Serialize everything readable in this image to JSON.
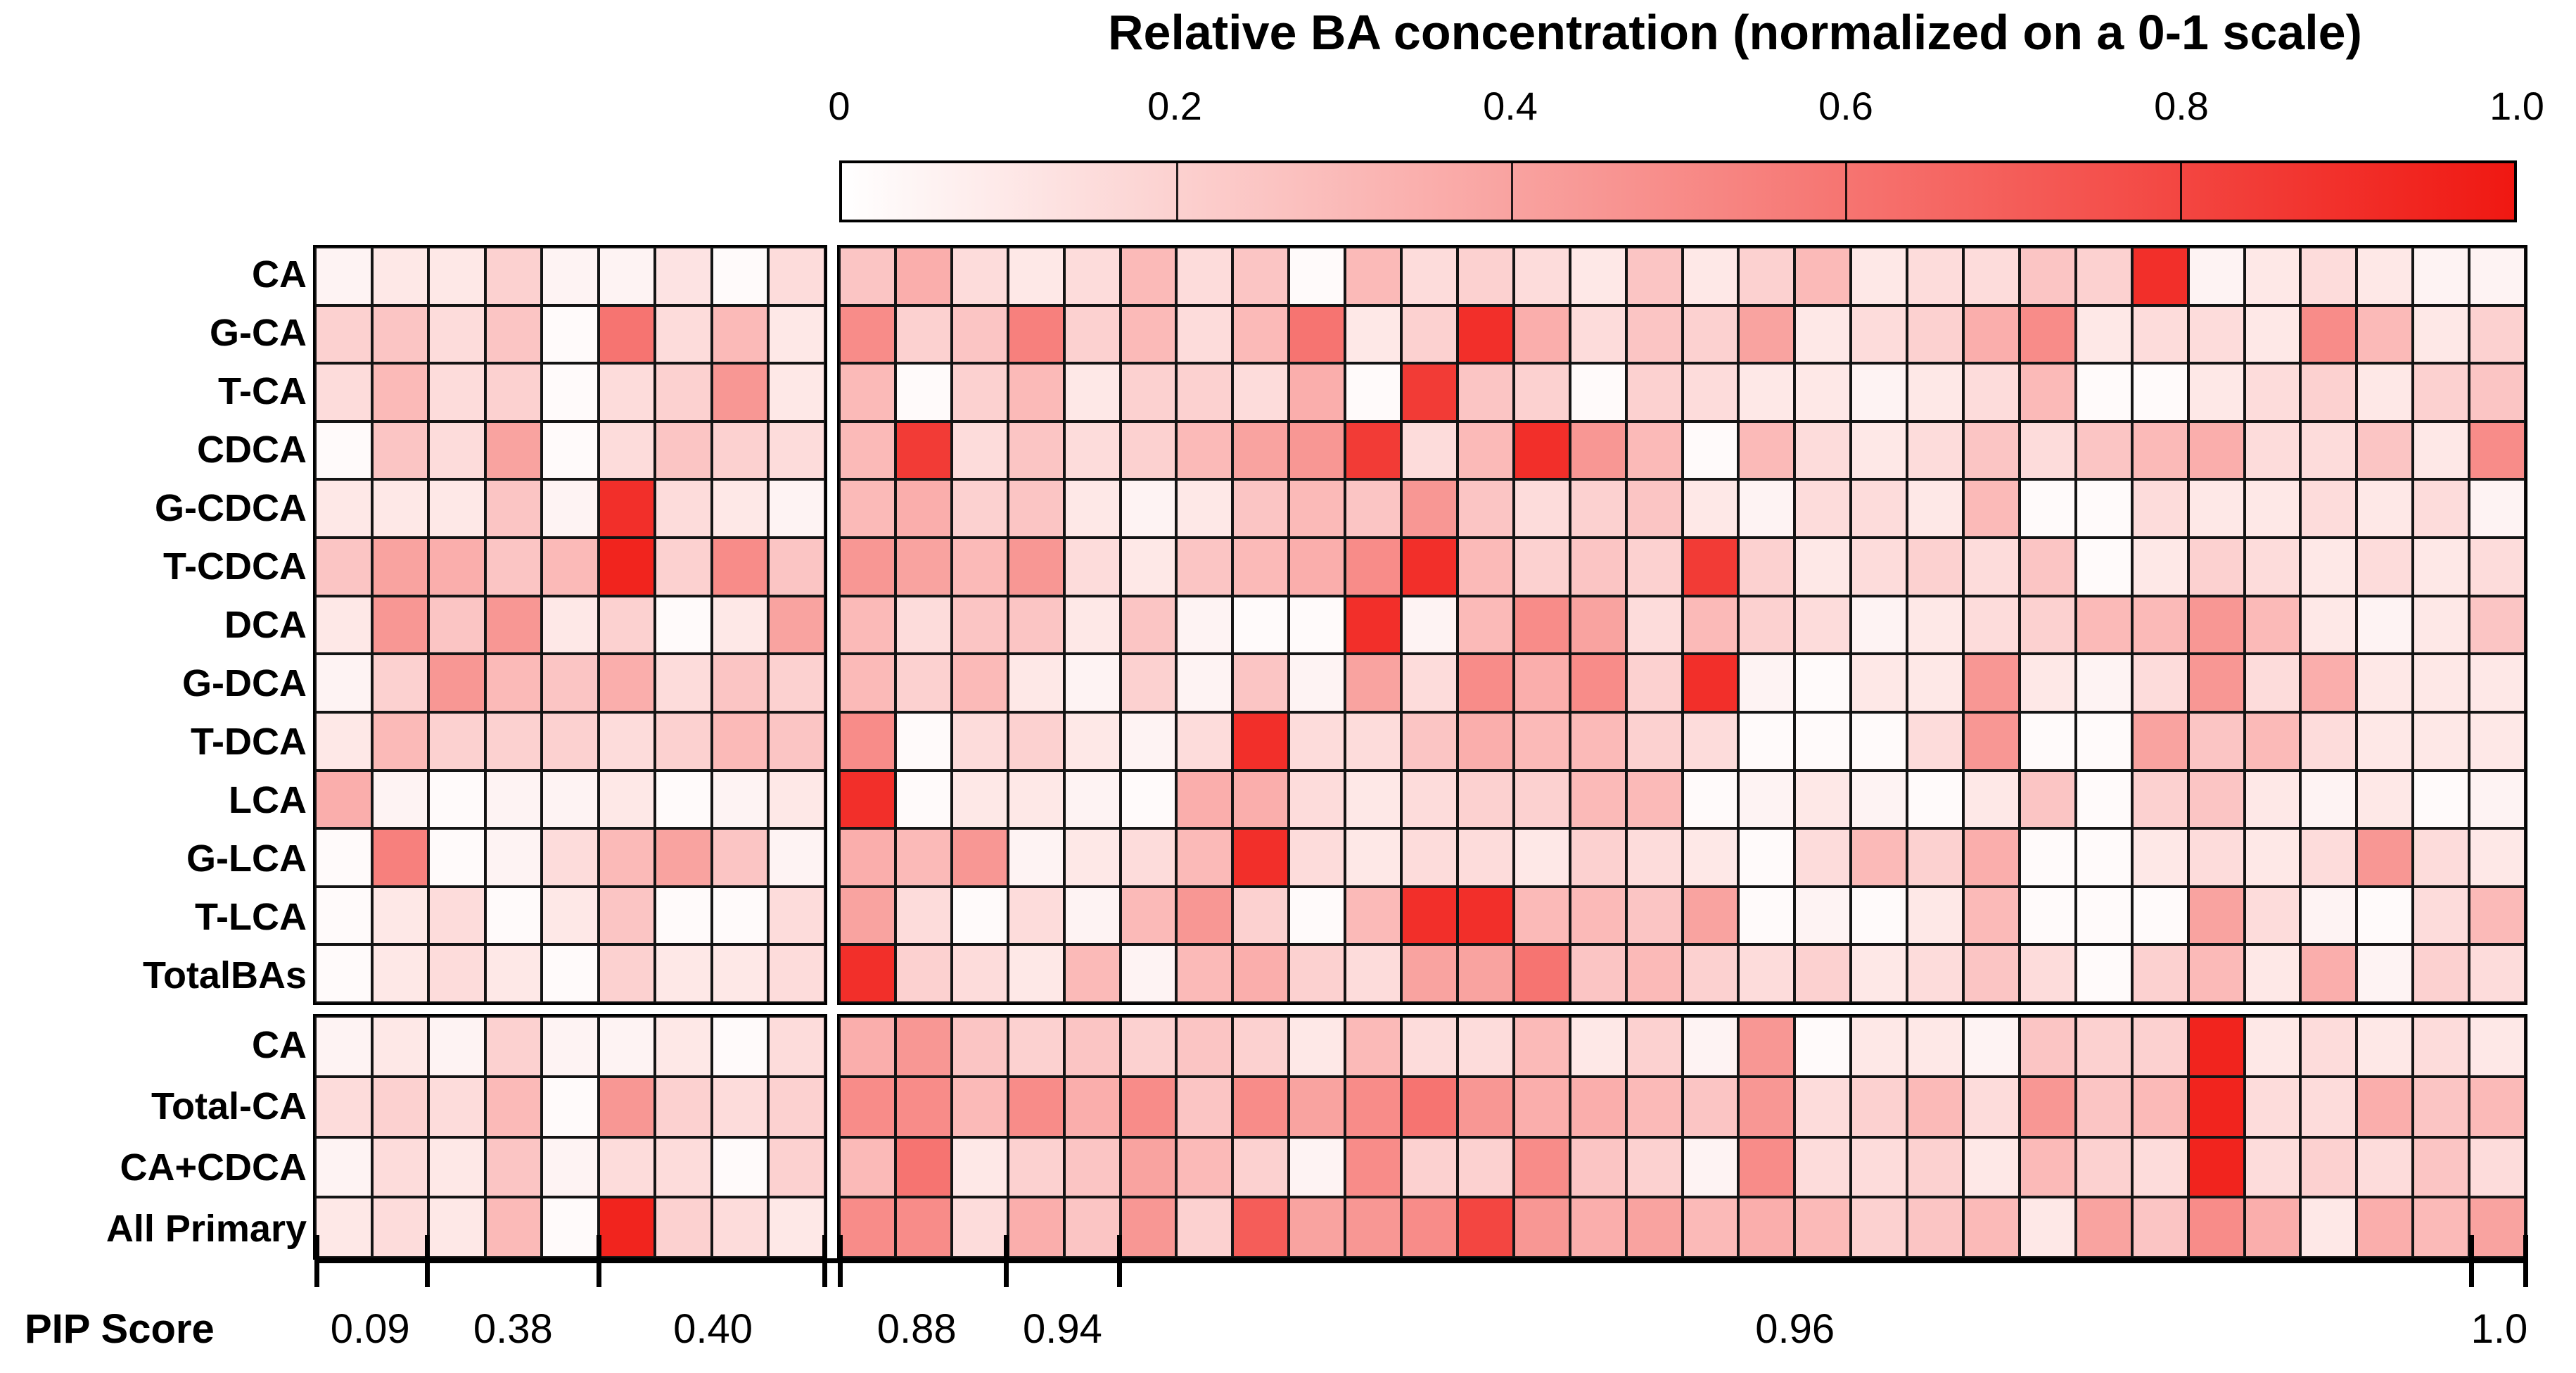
{
  "chart_data": {
    "type": "heatmap",
    "title": "Relative BA concentration (normalized on a 0-1 scale)",
    "colorbar": {
      "tick_labels": [
        "0",
        "0.2",
        "0.4",
        "0.6",
        "0.8",
        "1.0"
      ],
      "min_color": "#ffffff",
      "max_color": "#f01812",
      "range": [
        0,
        1
      ]
    },
    "columns_total": 39,
    "column_group_split": 9,
    "top_rows": [
      {
        "label": "CA",
        "values": [
          0.05,
          0.1,
          0.1,
          0.2,
          0.05,
          0.05,
          0.12,
          0.02,
          0.15,
          0.25,
          0.35,
          0.15,
          0.1,
          0.15,
          0.3,
          0.15,
          0.25,
          0.02,
          0.3,
          0.15,
          0.2,
          0.15,
          0.1,
          0.25,
          0.1,
          0.2,
          0.3,
          0.1,
          0.15,
          0.15,
          0.25,
          0.2,
          0.9,
          0.05,
          0.1,
          0.15,
          0.1,
          0.05,
          0.05
        ]
      },
      {
        "label": "G-CA",
        "values": [
          0.2,
          0.25,
          0.15,
          0.25,
          0.02,
          0.6,
          0.15,
          0.3,
          0.1,
          0.5,
          0.2,
          0.25,
          0.55,
          0.2,
          0.3,
          0.15,
          0.3,
          0.6,
          0.1,
          0.2,
          0.9,
          0.35,
          0.15,
          0.25,
          0.2,
          0.4,
          0.1,
          0.15,
          0.2,
          0.35,
          0.5,
          0.1,
          0.15,
          0.15,
          0.1,
          0.5,
          0.3,
          0.1,
          0.2
        ]
      },
      {
        "label": "T-CA",
        "values": [
          0.15,
          0.3,
          0.15,
          0.2,
          0.02,
          0.15,
          0.2,
          0.45,
          0.1,
          0.3,
          0.02,
          0.2,
          0.3,
          0.1,
          0.2,
          0.2,
          0.15,
          0.35,
          0.02,
          0.85,
          0.25,
          0.2,
          0.02,
          0.2,
          0.15,
          0.1,
          0.1,
          0.05,
          0.1,
          0.15,
          0.3,
          0.02,
          0.02,
          0.1,
          0.15,
          0.2,
          0.1,
          0.2,
          0.25
        ]
      },
      {
        "label": "CDCA",
        "values": [
          0.02,
          0.25,
          0.15,
          0.4,
          0.02,
          0.15,
          0.25,
          0.2,
          0.15,
          0.3,
          0.85,
          0.15,
          0.25,
          0.15,
          0.2,
          0.3,
          0.4,
          0.45,
          0.85,
          0.15,
          0.3,
          0.9,
          0.45,
          0.3,
          0.02,
          0.3,
          0.15,
          0.1,
          0.15,
          0.25,
          0.15,
          0.25,
          0.3,
          0.35,
          0.15,
          0.15,
          0.25,
          0.1,
          0.5
        ]
      },
      {
        "label": "G-CDCA",
        "values": [
          0.1,
          0.1,
          0.1,
          0.25,
          0.05,
          0.9,
          0.15,
          0.1,
          0.05,
          0.3,
          0.35,
          0.2,
          0.25,
          0.1,
          0.05,
          0.1,
          0.25,
          0.3,
          0.25,
          0.45,
          0.25,
          0.15,
          0.2,
          0.25,
          0.1,
          0.05,
          0.15,
          0.15,
          0.1,
          0.3,
          0.02,
          0.02,
          0.15,
          0.1,
          0.1,
          0.15,
          0.1,
          0.15,
          0.05
        ]
      },
      {
        "label": "T-CDCA",
        "values": [
          0.25,
          0.4,
          0.35,
          0.25,
          0.3,
          0.95,
          0.2,
          0.5,
          0.25,
          0.45,
          0.4,
          0.3,
          0.45,
          0.15,
          0.1,
          0.25,
          0.3,
          0.35,
          0.5,
          0.9,
          0.3,
          0.2,
          0.25,
          0.2,
          0.85,
          0.2,
          0.1,
          0.15,
          0.2,
          0.15,
          0.25,
          0.02,
          0.1,
          0.2,
          0.15,
          0.1,
          0.15,
          0.1,
          0.15
        ]
      },
      {
        "label": "DCA",
        "values": [
          0.1,
          0.45,
          0.25,
          0.45,
          0.1,
          0.2,
          0.02,
          0.1,
          0.4,
          0.3,
          0.15,
          0.25,
          0.25,
          0.1,
          0.25,
          0.05,
          0.02,
          0.02,
          0.9,
          0.05,
          0.3,
          0.5,
          0.4,
          0.15,
          0.3,
          0.2,
          0.15,
          0.05,
          0.1,
          0.15,
          0.2,
          0.3,
          0.3,
          0.45,
          0.3,
          0.1,
          0.05,
          0.1,
          0.25
        ]
      },
      {
        "label": "G-DCA",
        "values": [
          0.05,
          0.2,
          0.45,
          0.3,
          0.25,
          0.35,
          0.15,
          0.25,
          0.2,
          0.3,
          0.2,
          0.3,
          0.1,
          0.05,
          0.2,
          0.05,
          0.25,
          0.05,
          0.4,
          0.15,
          0.5,
          0.35,
          0.5,
          0.2,
          0.9,
          0.05,
          0.02,
          0.1,
          0.1,
          0.45,
          0.1,
          0.05,
          0.15,
          0.45,
          0.15,
          0.35,
          0.1,
          0.1,
          0.1
        ]
      },
      {
        "label": "T-DCA",
        "values": [
          0.1,
          0.3,
          0.2,
          0.2,
          0.2,
          0.15,
          0.2,
          0.3,
          0.25,
          0.5,
          0.02,
          0.15,
          0.2,
          0.1,
          0.05,
          0.15,
          0.9,
          0.15,
          0.15,
          0.25,
          0.35,
          0.3,
          0.3,
          0.2,
          0.15,
          0.02,
          0.02,
          0.02,
          0.15,
          0.45,
          0.02,
          0.02,
          0.4,
          0.25,
          0.3,
          0.15,
          0.1,
          0.1,
          0.1
        ]
      },
      {
        "label": "LCA",
        "values": [
          0.35,
          0.05,
          0.02,
          0.05,
          0.05,
          0.1,
          0.02,
          0.05,
          0.1,
          0.9,
          0.02,
          0.1,
          0.1,
          0.05,
          0.02,
          0.35,
          0.35,
          0.15,
          0.1,
          0.15,
          0.2,
          0.2,
          0.3,
          0.3,
          0.02,
          0.05,
          0.1,
          0.05,
          0.02,
          0.1,
          0.25,
          0.02,
          0.2,
          0.25,
          0.1,
          0.05,
          0.1,
          0.02,
          0.05
        ]
      },
      {
        "label": "G-LCA",
        "values": [
          0.02,
          0.55,
          0.02,
          0.05,
          0.15,
          0.3,
          0.4,
          0.25,
          0.05,
          0.35,
          0.3,
          0.45,
          0.05,
          0.1,
          0.15,
          0.3,
          0.9,
          0.15,
          0.1,
          0.15,
          0.15,
          0.1,
          0.2,
          0.15,
          0.1,
          0.02,
          0.15,
          0.3,
          0.2,
          0.35,
          0.02,
          0.02,
          0.1,
          0.15,
          0.1,
          0.15,
          0.45,
          0.15,
          0.1
        ]
      },
      {
        "label": "T-LCA",
        "values": [
          0.02,
          0.1,
          0.15,
          0.02,
          0.1,
          0.25,
          0.02,
          0.02,
          0.15,
          0.4,
          0.15,
          0.02,
          0.15,
          0.05,
          0.3,
          0.45,
          0.2,
          0.02,
          0.3,
          0.9,
          0.9,
          0.3,
          0.3,
          0.25,
          0.4,
          0.02,
          0.05,
          0.02,
          0.1,
          0.3,
          0.02,
          0.02,
          0.02,
          0.4,
          0.15,
          0.05,
          0.02,
          0.15,
          0.3
        ]
      },
      {
        "label": "TotalBAs",
        "values": [
          0.02,
          0.1,
          0.15,
          0.1,
          0.02,
          0.2,
          0.1,
          0.1,
          0.15,
          0.9,
          0.2,
          0.15,
          0.1,
          0.3,
          0.05,
          0.3,
          0.35,
          0.2,
          0.15,
          0.4,
          0.4,
          0.6,
          0.25,
          0.3,
          0.2,
          0.15,
          0.2,
          0.1,
          0.15,
          0.25,
          0.15,
          0.02,
          0.2,
          0.3,
          0.1,
          0.35,
          0.05,
          0.2,
          0.15
        ]
      }
    ],
    "bottom_rows": [
      {
        "label": "CA",
        "values": [
          0.05,
          0.1,
          0.05,
          0.2,
          0.05,
          0.05,
          0.1,
          0.02,
          0.15,
          0.35,
          0.45,
          0.25,
          0.2,
          0.25,
          0.2,
          0.25,
          0.2,
          0.1,
          0.3,
          0.15,
          0.15,
          0.3,
          0.1,
          0.2,
          0.05,
          0.45,
          0.02,
          0.1,
          0.1,
          0.05,
          0.25,
          0.2,
          0.2,
          0.95,
          0.1,
          0.15,
          0.1,
          0.15,
          0.1
        ]
      },
      {
        "label": "Total-CA",
        "values": [
          0.15,
          0.2,
          0.15,
          0.3,
          0.02,
          0.45,
          0.2,
          0.15,
          0.2,
          0.5,
          0.5,
          0.3,
          0.5,
          0.35,
          0.5,
          0.25,
          0.5,
          0.4,
          0.5,
          0.6,
          0.45,
          0.35,
          0.35,
          0.3,
          0.25,
          0.45,
          0.15,
          0.2,
          0.3,
          0.15,
          0.45,
          0.25,
          0.3,
          0.95,
          0.15,
          0.15,
          0.35,
          0.25,
          0.3
        ]
      },
      {
        "label": "CA+CDCA",
        "values": [
          0.05,
          0.15,
          0.1,
          0.25,
          0.05,
          0.15,
          0.15,
          0.02,
          0.2,
          0.3,
          0.6,
          0.1,
          0.2,
          0.25,
          0.4,
          0.3,
          0.2,
          0.05,
          0.5,
          0.2,
          0.2,
          0.5,
          0.25,
          0.2,
          0.05,
          0.5,
          0.15,
          0.15,
          0.2,
          0.1,
          0.3,
          0.2,
          0.15,
          0.95,
          0.15,
          0.2,
          0.15,
          0.25,
          0.15
        ]
      },
      {
        "label": "All Primary",
        "values": [
          0.1,
          0.15,
          0.1,
          0.3,
          0.02,
          0.95,
          0.2,
          0.15,
          0.1,
          0.5,
          0.5,
          0.15,
          0.35,
          0.25,
          0.45,
          0.2,
          0.7,
          0.4,
          0.45,
          0.5,
          0.8,
          0.45,
          0.35,
          0.4,
          0.3,
          0.35,
          0.3,
          0.2,
          0.25,
          0.3,
          0.1,
          0.4,
          0.25,
          0.5,
          0.35,
          0.1,
          0.35,
          0.3,
          0.4
        ]
      }
    ],
    "pip_axis": {
      "label": "PIP Score",
      "segments": [
        {
          "value": "0.09",
          "span": 2
        },
        {
          "value": "0.38",
          "span": 3
        },
        {
          "value": "0.40",
          "span": 4
        },
        {
          "value": "0.88",
          "span": 3
        },
        {
          "value": "0.94",
          "span": 2
        },
        {
          "value": "0.96",
          "span": 24
        },
        {
          "value": "1.0",
          "span": 1
        }
      ]
    }
  }
}
